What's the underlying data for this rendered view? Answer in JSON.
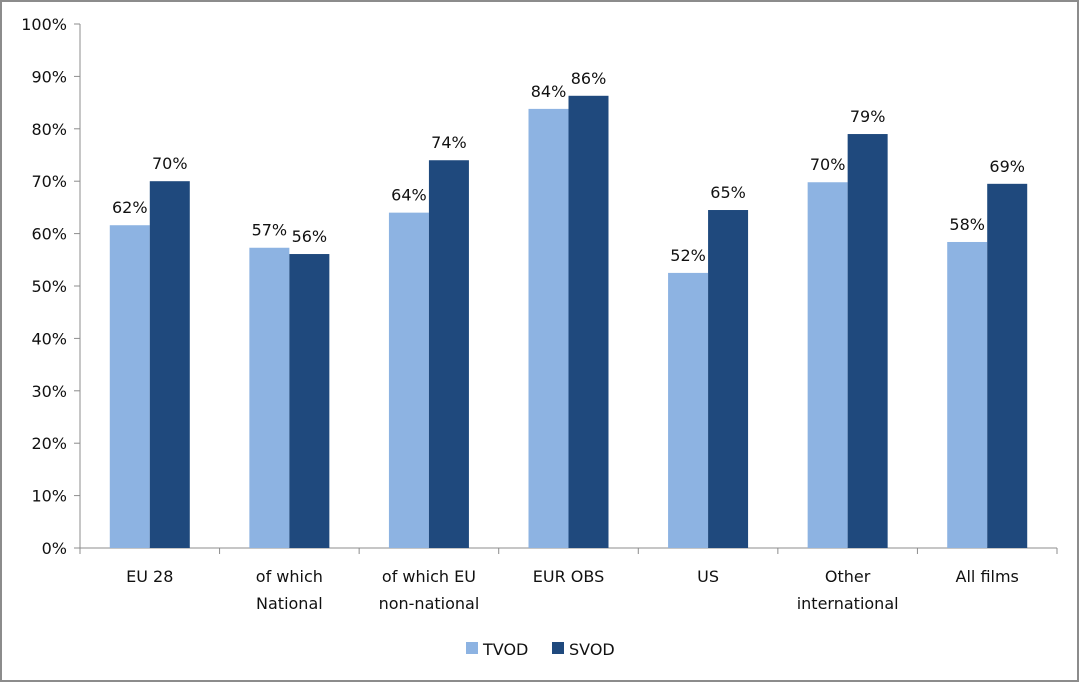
{
  "chart_data": {
    "type": "bar",
    "title": "",
    "xlabel": "",
    "ylabel": "",
    "ylim": [
      0,
      100
    ],
    "y_ticks": [
      "0%",
      "10%",
      "20%",
      "30%",
      "40%",
      "50%",
      "60%",
      "70%",
      "80%",
      "90%",
      "100%"
    ],
    "grid": false,
    "legend_position": "bottom",
    "categories": [
      [
        "EU 28"
      ],
      [
        "of which",
        "National"
      ],
      [
        "of which EU",
        "non-national"
      ],
      [
        "EUR OBS"
      ],
      [
        "US"
      ],
      [
        "Other",
        "international"
      ],
      [
        "All films"
      ]
    ],
    "series": [
      {
        "name": "TVOD",
        "color": "#8DB3E2",
        "values": [
          61.6,
          57.3,
          64.0,
          83.8,
          52.5,
          69.8,
          58.4
        ],
        "labels": [
          "62%",
          "57%",
          "64%",
          "84%",
          "52%",
          "70%",
          "58%"
        ]
      },
      {
        "name": "SVOD",
        "color": "#1F497D",
        "values": [
          70.0,
          56.1,
          74.0,
          86.3,
          64.5,
          79.0,
          69.5
        ],
        "labels": [
          "70%",
          "56%",
          "74%",
          "86%",
          "65%",
          "79%",
          "69%"
        ]
      }
    ]
  }
}
